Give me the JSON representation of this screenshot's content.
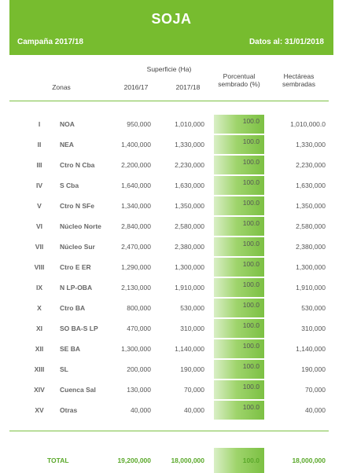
{
  "header": {
    "title": "SOJA",
    "campaign": "Campaña 2017/18",
    "date": "Datos al: 31/01/2018"
  },
  "columns": {
    "zonas": "Zonas",
    "superficie": "Superficie (Ha)",
    "year1": "2016/17",
    "year2": "2017/18",
    "porcentual_l1": "Porcentual",
    "porcentual_l2": "sembrado (%)",
    "hectareas_l1": "Hectáreas",
    "hectareas_l2": "sembradas"
  },
  "rows": [
    {
      "roman": "I",
      "zone": "NOA",
      "v2016": "950,000",
      "v2017": "1,010,000",
      "pct": "100.0",
      "sown": "1,010,000.0"
    },
    {
      "roman": "II",
      "zone": "NEA",
      "v2016": "1,400,000",
      "v2017": "1,330,000",
      "pct": "100.0",
      "sown": "1,330,000"
    },
    {
      "roman": "III",
      "zone": "Ctro N Cba",
      "v2016": "2,200,000",
      "v2017": "2,230,000",
      "pct": "100.0",
      "sown": "2,230,000"
    },
    {
      "roman": "IV",
      "zone": "S Cba",
      "v2016": "1,640,000",
      "v2017": "1,630,000",
      "pct": "100.0",
      "sown": "1,630,000"
    },
    {
      "roman": "V",
      "zone": "Ctro N SFe",
      "v2016": "1,340,000",
      "v2017": "1,350,000",
      "pct": "100.0",
      "sown": "1,350,000"
    },
    {
      "roman": "VI",
      "zone": "Núcleo Norte",
      "v2016": "2,840,000",
      "v2017": "2,580,000",
      "pct": "100.0",
      "sown": "2,580,000"
    },
    {
      "roman": "VII",
      "zone": "Núcleo Sur",
      "v2016": "2,470,000",
      "v2017": "2,380,000",
      "pct": "100.0",
      "sown": "2,380,000"
    },
    {
      "roman": "VIII",
      "zone": "Ctro E ER",
      "v2016": "1,290,000",
      "v2017": "1,300,000",
      "pct": "100.0",
      "sown": "1,300,000"
    },
    {
      "roman": "IX",
      "zone": "N LP-OBA",
      "v2016": "2,130,000",
      "v2017": "1,910,000",
      "pct": "100.0",
      "sown": "1,910,000"
    },
    {
      "roman": "X",
      "zone": "Ctro BA",
      "v2016": "800,000",
      "v2017": "530,000",
      "pct": "100.0",
      "sown": "530,000"
    },
    {
      "roman": "XI",
      "zone": "SO BA-S LP",
      "v2016": "470,000",
      "v2017": "310,000",
      "pct": "100.0",
      "sown": "310,000"
    },
    {
      "roman": "XII",
      "zone": "SE BA",
      "v2016": "1,300,000",
      "v2017": "1,140,000",
      "pct": "100.0",
      "sown": "1,140,000"
    },
    {
      "roman": "XIII",
      "zone": "SL",
      "v2016": "200,000",
      "v2017": "190,000",
      "pct": "100.0",
      "sown": "190,000"
    },
    {
      "roman": "XIV",
      "zone": "Cuenca Sal",
      "v2016": "130,000",
      "v2017": "70,000",
      "pct": "100.0",
      "sown": "70,000"
    },
    {
      "roman": "XV",
      "zone": "Otras",
      "v2016": "40,000",
      "v2017": "40,000",
      "pct": "100.0",
      "sown": "40,000"
    }
  ],
  "total": {
    "label": "TOTAL",
    "v2016": "19,200,000",
    "v2017": "18,000,000",
    "pct": "100.0",
    "sown": "18,000,000"
  },
  "colors": {
    "accent": "#77bc2f",
    "bar_light": "#d9efc6",
    "bar_dark": "#7cc043",
    "total_text": "#5aa82a"
  }
}
